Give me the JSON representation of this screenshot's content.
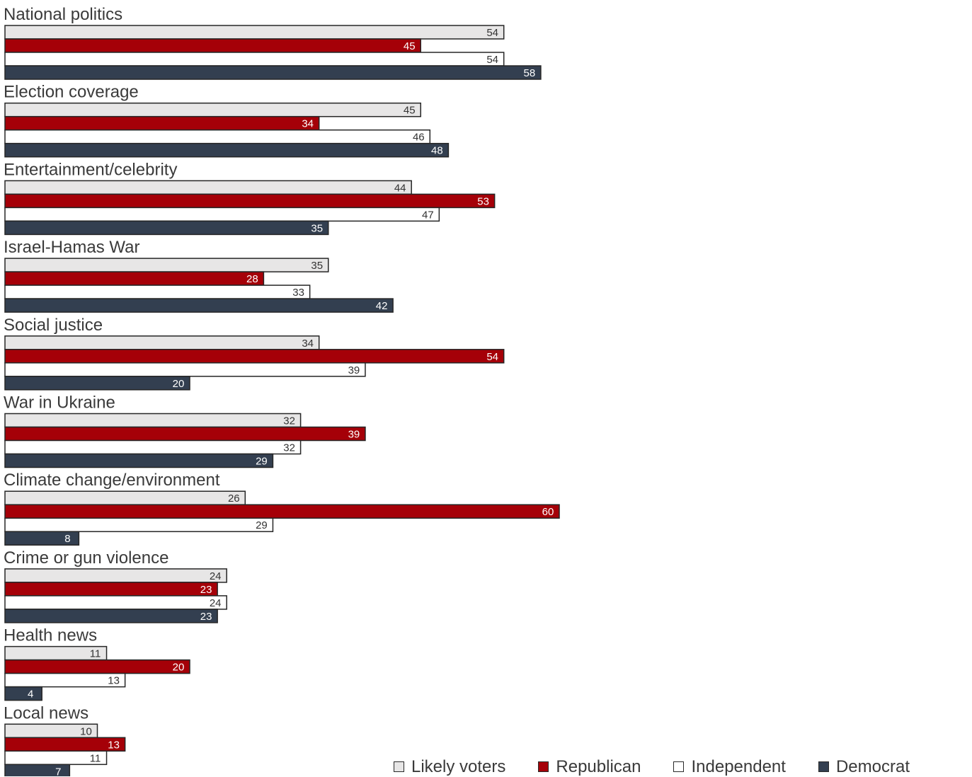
{
  "chart_data": {
    "type": "bar",
    "orientation": "horizontal",
    "categories": [
      "National politics",
      "Election coverage",
      "Entertainment/celebrity",
      "Israel-Hamas War",
      "Social justice",
      "War in Ukraine",
      "Climate change/environment",
      "Crime or gun violence",
      "Health news",
      "Local news"
    ],
    "series": [
      {
        "name": "Likely voters",
        "color": "#e7e6e6",
        "label_color": "#333333",
        "values": [
          54,
          45,
          44,
          35,
          34,
          32,
          26,
          24,
          11,
          10
        ]
      },
      {
        "name": "Republican",
        "color": "#a50008",
        "label_color": "#ffffff",
        "values": [
          45,
          34,
          53,
          28,
          54,
          39,
          60,
          23,
          20,
          13
        ]
      },
      {
        "name": "Independent",
        "color": "#ffffff",
        "label_color": "#333333",
        "values": [
          54,
          46,
          47,
          33,
          39,
          32,
          29,
          24,
          13,
          11
        ]
      },
      {
        "name": "Democrat",
        "color": "#333f50",
        "label_color": "#ffffff",
        "values": [
          58,
          48,
          35,
          42,
          20,
          29,
          8,
          23,
          4,
          7
        ]
      }
    ],
    "xlim": [
      0,
      100
    ],
    "grid": false,
    "data_labels": true,
    "legend_position": "bottom-right"
  }
}
